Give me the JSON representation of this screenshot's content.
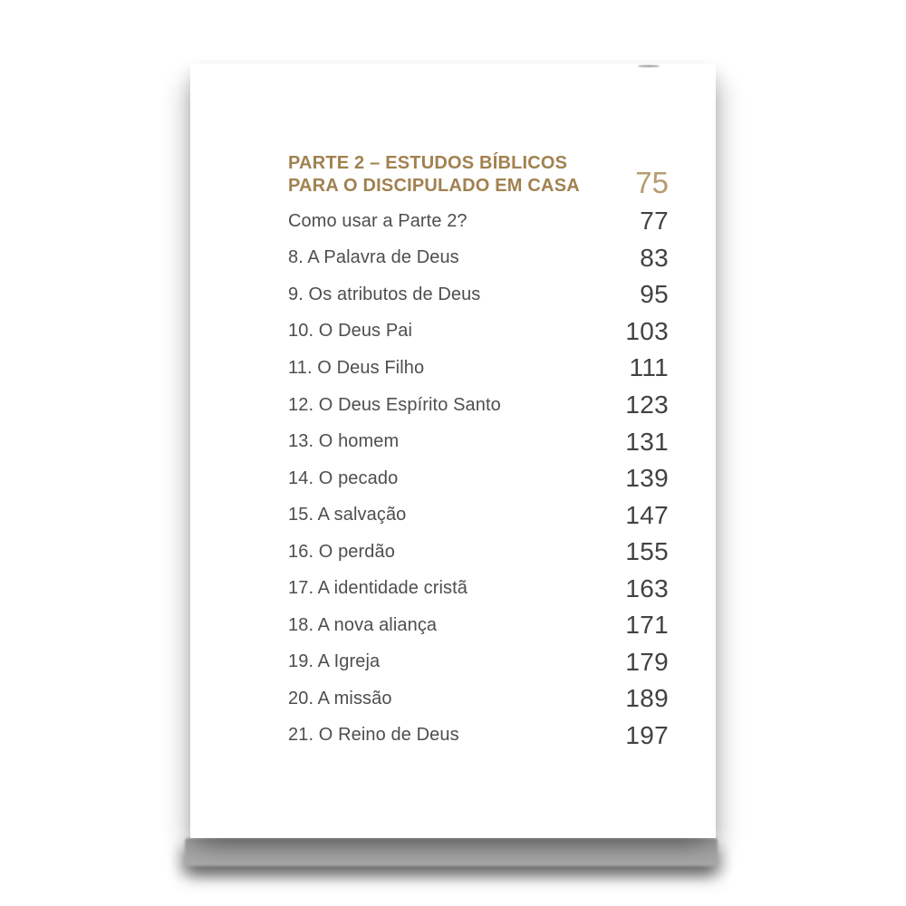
{
  "document_type": "book-table-of-contents-photo",
  "header": {
    "title_line1": "PARTE 2 – ESTUDOS BÍBLICOS",
    "title_line2": "PARA O DISCIPULADO EM CASA",
    "page_number": "75"
  },
  "toc": {
    "items": [
      {
        "label": "Como usar a Parte 2?",
        "page": "77"
      },
      {
        "label": "8. A Palavra de Deus",
        "page": "83"
      },
      {
        "label": "9. Os atributos de Deus",
        "page": "95"
      },
      {
        "label": "10. O Deus Pai",
        "page": "103"
      },
      {
        "label": "11. O Deus Filho",
        "page": "111"
      },
      {
        "label": "12. O Deus Espírito Santo",
        "page": "123"
      },
      {
        "label": "13. O homem",
        "page": "131"
      },
      {
        "label": "14. O pecado",
        "page": "139"
      },
      {
        "label": "15. A salvação",
        "page": "147"
      },
      {
        "label": "16. O perdão",
        "page": "155"
      },
      {
        "label": "17. A identidade cristã",
        "page": "163"
      },
      {
        "label": "18. A nova aliança",
        "page": "171"
      },
      {
        "label": "19. A Igreja",
        "page": "179"
      },
      {
        "label": "20. A missão",
        "page": "189"
      },
      {
        "label": "21. O Reino de Deus",
        "page": "197"
      }
    ]
  },
  "colors": {
    "accent_title": "#a1814f",
    "accent_part_page_number": "#b79d6f",
    "item_text": "#4e4e4e",
    "item_page_number": "#424242",
    "book_edge_gray": "#a8a8a8",
    "page_background": "#ffffff"
  }
}
